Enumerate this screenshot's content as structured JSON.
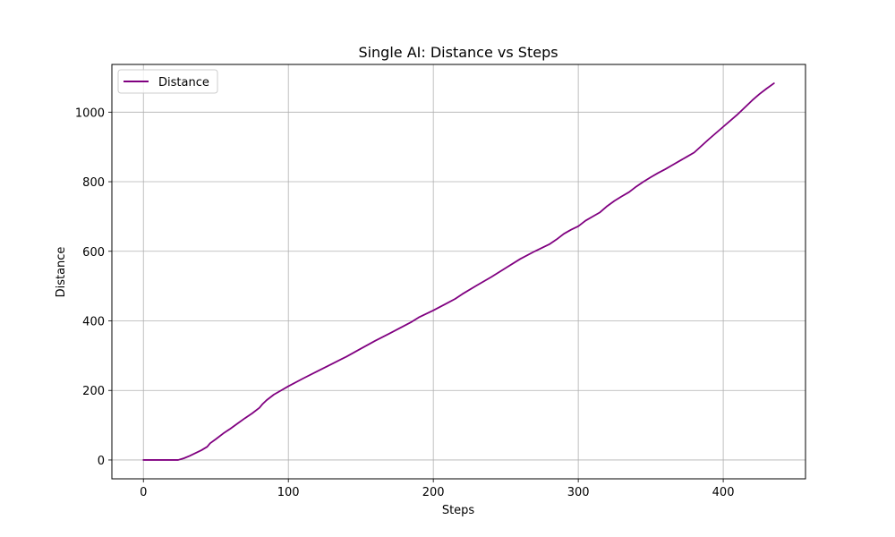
{
  "chart_data": {
    "type": "line",
    "title": "Single AI: Distance vs Steps",
    "xlabel": "Steps",
    "ylabel": "Distance",
    "xlim": [
      -21.75,
      456.75
    ],
    "ylim": [
      -54.15,
      1137.15
    ],
    "xticks": [
      0,
      100,
      200,
      300,
      400
    ],
    "yticks": [
      0,
      200,
      400,
      600,
      800,
      1000
    ],
    "grid": true,
    "legend_position": "top-left",
    "series": [
      {
        "name": "Distance",
        "color": "#800080",
        "x": [
          0,
          10,
          20,
          24,
          28,
          32,
          36,
          40,
          44,
          46,
          50,
          55,
          60,
          65,
          70,
          75,
          80,
          82,
          85,
          90,
          95,
          100,
          110,
          120,
          130,
          140,
          150,
          160,
          170,
          180,
          185,
          190,
          200,
          210,
          215,
          220,
          230,
          240,
          250,
          260,
          270,
          280,
          285,
          290,
          295,
          300,
          305,
          310,
          315,
          320,
          325,
          330,
          335,
          340,
          345,
          350,
          355,
          360,
          365,
          370,
          375,
          380,
          385,
          390,
          395,
          400,
          410,
          420,
          425,
          430,
          435
        ],
        "y": [
          0,
          0,
          0,
          0,
          5,
          12,
          20,
          28,
          38,
          48,
          60,
          76,
          90,
          105,
          120,
          134,
          150,
          160,
          172,
          188,
          200,
          212,
          234,
          255,
          276,
          297,
          320,
          343,
          364,
          386,
          397,
          410,
          430,
          452,
          463,
          477,
          502,
          526,
          552,
          578,
          600,
          620,
          634,
          650,
          662,
          672,
          688,
          700,
          712,
          730,
          745,
          758,
          770,
          786,
          800,
          813,
          825,
          836,
          848,
          860,
          872,
          884,
          903,
          922,
          940,
          958,
          994,
          1034,
          1052,
          1068,
          1083
        ]
      }
    ]
  }
}
